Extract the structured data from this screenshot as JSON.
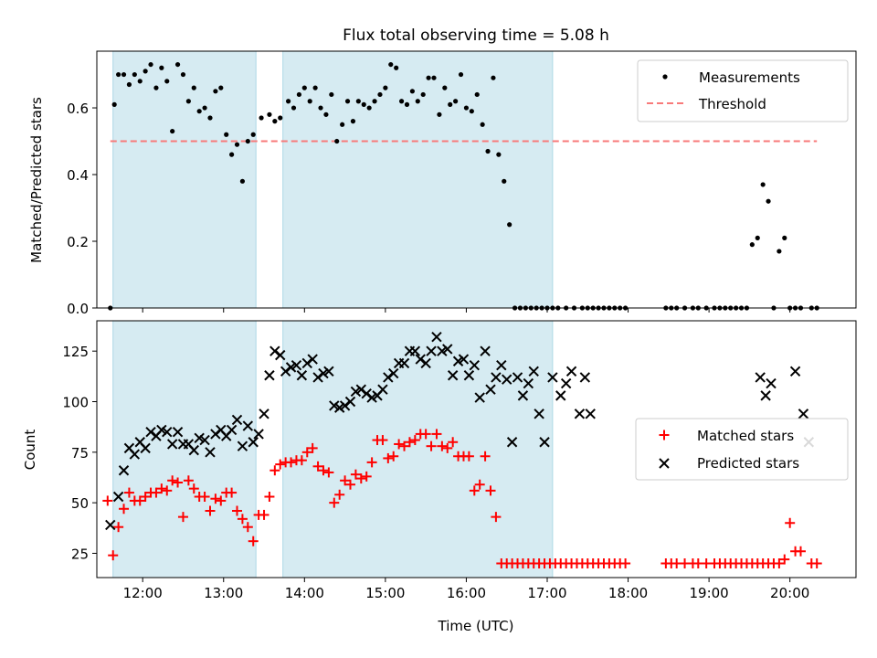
{
  "chart_data": [
    {
      "type": "scatter",
      "title": "Flux total observing time = 5.08 h",
      "xlabel": "",
      "ylabel": "Matched/Predicted stars",
      "xlim": [
        "11:26",
        "20:49"
      ],
      "ylim": [
        0,
        0.77
      ],
      "yticks": [
        "0.0",
        "0.2",
        "0.4",
        "0.6"
      ],
      "xticks": [
        "12:00",
        "13:00",
        "14:00",
        "15:00",
        "16:00",
        "17:00",
        "18:00",
        "19:00",
        "20:00"
      ],
      "show_xtick_labels": false,
      "shaded_intervals": [
        [
          "11:38",
          "13:24"
        ],
        [
          "13:44",
          "17:04"
        ]
      ],
      "legend": {
        "position": "top-right",
        "entries": [
          "Measurements",
          "Threshold"
        ]
      },
      "series": [
        {
          "name": "Measurements",
          "color": "#000000",
          "marker": "dot",
          "x": [
            "11:36",
            "11:39",
            "11:42",
            "11:46",
            "11:50",
            "11:54",
            "11:58",
            "12:02",
            "12:06",
            "12:10",
            "12:14",
            "12:18",
            "12:22",
            "12:26",
            "12:30",
            "12:34",
            "12:38",
            "12:42",
            "12:46",
            "12:50",
            "12:54",
            "12:58",
            "13:02",
            "13:06",
            "13:10",
            "13:14",
            "13:18",
            "13:22",
            "13:28",
            "13:34",
            "13:38",
            "13:42",
            "13:48",
            "13:52",
            "13:56",
            "14:00",
            "14:04",
            "14:08",
            "14:12",
            "14:16",
            "14:20",
            "14:24",
            "14:28",
            "14:32",
            "14:36",
            "14:40",
            "14:44",
            "14:48",
            "14:52",
            "14:56",
            "15:00",
            "15:04",
            "15:08",
            "15:12",
            "15:16",
            "15:20",
            "15:24",
            "15:28",
            "15:32",
            "15:36",
            "15:40",
            "15:44",
            "15:48",
            "15:52",
            "15:56",
            "16:00",
            "16:04",
            "16:08",
            "16:12",
            "16:16",
            "16:20",
            "16:24",
            "16:28",
            "16:32",
            "16:36",
            "16:40",
            "16:44",
            "16:48",
            "16:52",
            "16:56",
            "17:00",
            "17:04",
            "17:08",
            "17:14",
            "17:20",
            "17:26",
            "17:30",
            "17:34",
            "17:38",
            "17:42",
            "17:46",
            "17:50",
            "17:54",
            "17:58",
            "18:28",
            "18:32",
            "18:36",
            "18:42",
            "18:48",
            "18:52",
            "18:58",
            "19:04",
            "19:08",
            "19:12",
            "19:16",
            "19:20",
            "19:24",
            "19:28",
            "19:32",
            "19:36",
            "19:40",
            "19:44",
            "19:48",
            "19:52",
            "19:56",
            "20:00",
            "20:04",
            "20:08",
            "20:16",
            "20:20"
          ],
          "y": [
            0.0,
            0.61,
            0.7,
            0.7,
            0.67,
            0.7,
            0.68,
            0.71,
            0.73,
            0.66,
            0.72,
            0.68,
            0.53,
            0.73,
            0.7,
            0.62,
            0.66,
            0.59,
            0.6,
            0.57,
            0.65,
            0.66,
            0.52,
            0.46,
            0.49,
            0.38,
            0.5,
            0.52,
            0.57,
            0.58,
            0.56,
            0.57,
            0.62,
            0.6,
            0.64,
            0.66,
            0.62,
            0.66,
            0.6,
            0.58,
            0.64,
            0.5,
            0.55,
            0.62,
            0.56,
            0.62,
            0.61,
            0.6,
            0.62,
            0.64,
            0.66,
            0.73,
            0.72,
            0.62,
            0.61,
            0.65,
            0.62,
            0.64,
            0.69,
            0.69,
            0.58,
            0.66,
            0.61,
            0.62,
            0.7,
            0.6,
            0.59,
            0.64,
            0.55,
            0.47,
            0.69,
            0.46,
            0.38,
            0.25,
            0.0,
            0.0,
            0.0,
            0.0,
            0.0,
            0.0,
            0.0,
            0.0,
            0.0,
            0.0,
            0.0,
            0.0,
            0.0,
            0.0,
            0.0,
            0.0,
            0.0,
            0.0,
            0.0,
            0.0,
            0.0,
            0.0,
            0.0,
            0.0,
            0.0,
            0.0,
            0.0,
            0.0,
            0.0,
            0.0,
            0.0,
            0.0,
            0.0,
            0.0,
            0.19,
            0.21,
            0.37,
            0.32,
            0.0,
            0.17,
            0.21,
            0.0,
            0.0,
            0.0,
            0.0,
            0.0
          ]
        }
      ],
      "threshold": {
        "name": "Threshold",
        "value": 0.5,
        "x_start": "11:36",
        "x_end": "20:20",
        "color": "#f87a7a",
        "style": "dashed"
      }
    },
    {
      "type": "scatter",
      "title": "",
      "xlabel": "Time (UTC)",
      "ylabel": "Count",
      "xlim": [
        "11:26",
        "20:49"
      ],
      "ylim": [
        13,
        140
      ],
      "yticks": [
        "25",
        "50",
        "75",
        "100",
        "125"
      ],
      "xticks": [
        "12:00",
        "13:00",
        "14:00",
        "15:00",
        "16:00",
        "17:00",
        "18:00",
        "19:00",
        "20:00"
      ],
      "shaded_intervals": [
        [
          "11:38",
          "13:24"
        ],
        [
          "13:44",
          "17:04"
        ]
      ],
      "legend": {
        "position": "center-right",
        "entries": [
          "Matched stars",
          "Predicted stars"
        ]
      },
      "series": [
        {
          "name": "Matched stars",
          "color": "#ff0000",
          "marker": "plus",
          "x": [
            "11:34",
            "11:38",
            "11:42",
            "11:46",
            "11:50",
            "11:54",
            "11:58",
            "12:02",
            "12:06",
            "12:10",
            "12:14",
            "12:18",
            "12:22",
            "12:26",
            "12:30",
            "12:34",
            "12:38",
            "12:42",
            "12:46",
            "12:50",
            "12:54",
            "12:58",
            "13:02",
            "13:06",
            "13:10",
            "13:14",
            "13:18",
            "13:22",
            "13:26",
            "13:30",
            "13:34",
            "13:38",
            "13:42",
            "13:46",
            "13:50",
            "13:54",
            "13:58",
            "14:02",
            "14:06",
            "14:10",
            "14:14",
            "14:18",
            "14:22",
            "14:26",
            "14:30",
            "14:34",
            "14:38",
            "14:42",
            "14:46",
            "14:50",
            "14:54",
            "14:58",
            "15:02",
            "15:06",
            "15:10",
            "15:14",
            "15:18",
            "15:22",
            "15:26",
            "15:30",
            "15:34",
            "15:38",
            "15:42",
            "15:46",
            "15:50",
            "15:54",
            "15:58",
            "16:02",
            "16:06",
            "16:10",
            "16:14",
            "16:18",
            "16:22",
            "16:26",
            "16:30",
            "16:34",
            "16:38",
            "16:42",
            "16:46",
            "16:50",
            "16:54",
            "16:58",
            "17:02",
            "17:06",
            "17:10",
            "17:14",
            "17:18",
            "17:22",
            "17:26",
            "17:30",
            "17:34",
            "17:38",
            "17:42",
            "17:46",
            "17:50",
            "17:54",
            "17:58",
            "18:28",
            "18:32",
            "18:36",
            "18:42",
            "18:48",
            "18:52",
            "18:58",
            "19:04",
            "19:08",
            "19:12",
            "19:16",
            "19:20",
            "19:24",
            "19:28",
            "19:32",
            "19:36",
            "19:40",
            "19:44",
            "19:48",
            "19:52",
            "19:56",
            "20:00",
            "20:04",
            "20:08",
            "20:16",
            "20:20"
          ],
          "y": [
            51,
            24,
            38,
            47,
            55,
            51,
            51,
            53,
            55,
            55,
            57,
            56,
            61,
            60,
            43,
            61,
            57,
            53,
            53,
            46,
            52,
            51,
            55,
            55,
            46,
            42,
            38,
            31,
            44,
            44,
            53,
            66,
            69,
            70,
            70,
            71,
            71,
            75,
            77,
            68,
            66,
            65,
            50,
            54,
            61,
            59,
            64,
            62,
            63,
            70,
            81,
            81,
            72,
            73,
            79,
            78,
            80,
            81,
            84,
            84,
            78,
            84,
            78,
            77,
            80,
            73,
            73,
            73,
            56,
            59,
            73,
            56,
            43,
            20,
            20,
            20,
            20,
            20,
            20,
            20,
            20,
            20,
            20,
            20,
            20,
            20,
            20,
            20,
            20,
            20,
            20,
            20,
            20,
            20,
            20,
            20,
            20,
            20,
            20,
            20,
            20,
            20,
            20,
            20,
            20,
            20,
            20,
            20,
            20,
            20,
            20,
            20,
            20,
            20,
            20,
            20,
            20,
            22,
            40,
            26,
            26,
            20,
            20
          ]
        },
        {
          "name": "Predicted stars",
          "color": "#000000",
          "marker": "x",
          "x": [
            "11:36",
            "11:42",
            "11:46",
            "11:50",
            "11:54",
            "11:58",
            "12:02",
            "12:06",
            "12:10",
            "12:14",
            "12:18",
            "12:22",
            "12:26",
            "12:30",
            "12:34",
            "12:38",
            "12:42",
            "12:46",
            "12:50",
            "12:54",
            "12:58",
            "13:02",
            "13:06",
            "13:10",
            "13:14",
            "13:18",
            "13:22",
            "13:26",
            "13:30",
            "13:34",
            "13:38",
            "13:42",
            "13:46",
            "13:50",
            "13:54",
            "13:58",
            "14:02",
            "14:06",
            "14:10",
            "14:14",
            "14:18",
            "14:22",
            "14:26",
            "14:30",
            "14:34",
            "14:38",
            "14:42",
            "14:46",
            "14:50",
            "14:54",
            "14:58",
            "15:02",
            "15:06",
            "15:10",
            "15:14",
            "15:18",
            "15:22",
            "15:26",
            "15:30",
            "15:34",
            "15:38",
            "15:42",
            "15:46",
            "15:50",
            "15:54",
            "15:58",
            "16:02",
            "16:06",
            "16:10",
            "16:14",
            "16:18",
            "16:22",
            "16:26",
            "16:30",
            "16:34",
            "16:38",
            "16:42",
            "16:46",
            "16:50",
            "16:54",
            "16:58",
            "17:04",
            "17:10",
            "17:14",
            "17:18",
            "17:24",
            "17:28",
            "17:32",
            "19:38",
            "19:42",
            "19:46",
            "20:04",
            "20:10",
            "20:14"
          ],
          "y": [
            39,
            53,
            66,
            77,
            74,
            80,
            77,
            85,
            83,
            86,
            85,
            79,
            85,
            79,
            79,
            76,
            82,
            81,
            75,
            84,
            86,
            83,
            86,
            91,
            78,
            88,
            80,
            84,
            94,
            113,
            125,
            123,
            115,
            117,
            118,
            113,
            119,
            121,
            112,
            114,
            115,
            98,
            97,
            98,
            100,
            105,
            106,
            104,
            102,
            103,
            106,
            112,
            114,
            119,
            119,
            125,
            125,
            121,
            119,
            125,
            132,
            125,
            126,
            113,
            120,
            121,
            113,
            118,
            102,
            125,
            106,
            112,
            118,
            111,
            80,
            112,
            103,
            109,
            115,
            94,
            80,
            112,
            103,
            109,
            115,
            94,
            112,
            94,
            112,
            103,
            109,
            115,
            94,
            80
          ]
        }
      ]
    }
  ]
}
